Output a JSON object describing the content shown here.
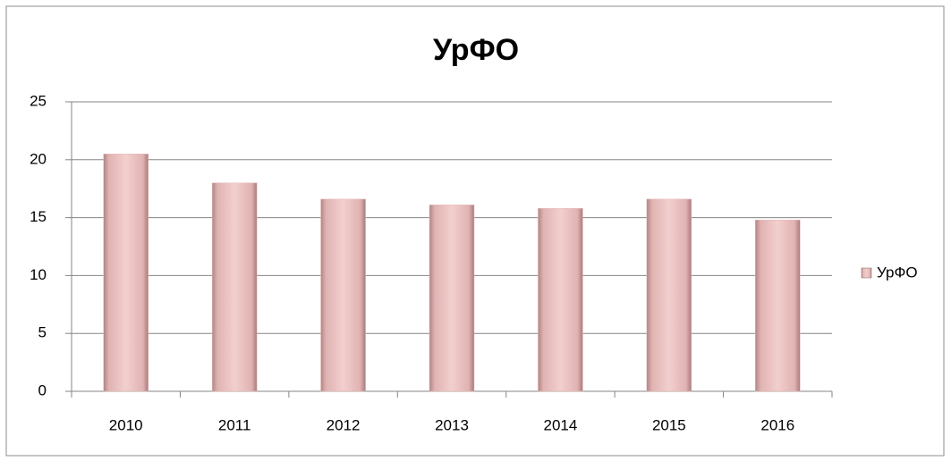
{
  "chart_data": {
    "type": "bar",
    "title": "УрФО",
    "categories": [
      "2010",
      "2011",
      "2012",
      "2013",
      "2014",
      "2015",
      "2016"
    ],
    "series": [
      {
        "name": "УрФО",
        "color": "#e6b9b8",
        "values": [
          20.5,
          18,
          16.6,
          16.1,
          15.8,
          16.6,
          14.8
        ]
      }
    ],
    "ylim": [
      0,
      25
    ],
    "yticks": [
      0,
      5,
      10,
      15,
      20,
      25
    ],
    "grid": true,
    "legend": "right"
  }
}
